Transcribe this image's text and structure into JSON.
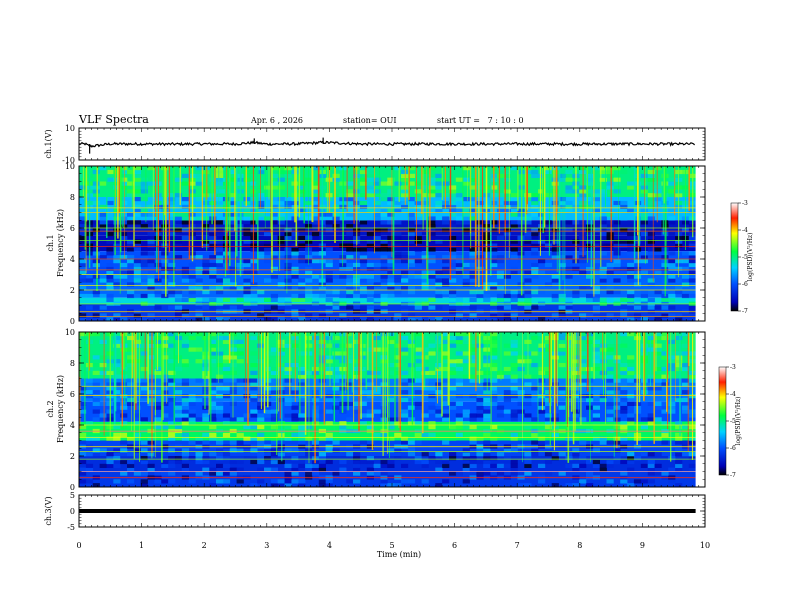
{
  "header": {
    "title": "VLF Spectra",
    "date": "Apr. 6  , 2026",
    "station": "station= OUI",
    "start_ut": "start UT =   7 : 10 : 0"
  },
  "chart_data": [
    {
      "type": "line",
      "panel": "ch1-waveform",
      "ylabel": "ch.1(V)",
      "ylim": [
        -10,
        10
      ],
      "yticks": [
        "10",
        "-10"
      ],
      "xlim": [
        0,
        10
      ],
      "x": [
        0,
        0.1,
        0.17,
        0.5,
        1.0,
        1.5,
        2.0,
        2.5,
        2.8,
        3.0,
        3.5,
        3.9,
        4.5,
        5.0,
        5.5,
        6.0,
        6.5,
        7.0,
        7.5,
        8.0,
        8.5,
        9.0,
        9.5,
        9.85
      ],
      "y": [
        0,
        0.3,
        -6,
        0.2,
        0.1,
        -0.3,
        0.2,
        0.1,
        3.5,
        -0.2,
        0.3,
        4.0,
        0.1,
        -0.2,
        0.2,
        0.1,
        -0.1,
        0.2,
        0.1,
        -0.2,
        0.1,
        0.2,
        -0.1,
        0.0
      ],
      "grid": false
    },
    {
      "type": "heatmap",
      "panel": "ch1-spectrogram",
      "ylabel": "ch.1\nFrequency (kHz)",
      "ylim": [
        0,
        10
      ],
      "yticks": [
        "0",
        "2",
        "4",
        "6",
        "8",
        "10"
      ],
      "xlim": [
        0,
        10
      ],
      "colorbar": {
        "label": "log(PSD)(V²/Hz)",
        "range": [
          -7,
          -3
        ],
        "ticks": [
          "-3",
          "-4",
          "-5",
          "-6",
          "-7"
        ]
      },
      "bands": [
        {
          "f": [
            8.0,
            10.0
          ],
          "level": -5.0
        },
        {
          "f": [
            6.5,
            8.0
          ],
          "level": -5.5
        },
        {
          "f": [
            5.5,
            6.5
          ],
          "level": -6.5
        },
        {
          "f": [
            4.5,
            5.5
          ],
          "level": -6.6
        },
        {
          "f": [
            3.0,
            4.5
          ],
          "level": -6.0
        },
        {
          "f": [
            1.5,
            3.0
          ],
          "level": -5.9
        },
        {
          "f": [
            1.1,
            1.5
          ],
          "level": -5.3
        },
        {
          "f": [
            0.0,
            1.1
          ],
          "level": -6.2
        }
      ],
      "lines_khz": [
        0.3,
        0.6,
        1.1,
        2.0,
        2.3,
        3.0,
        3.3,
        4.0,
        4.8,
        5.2,
        5.8,
        6.0,
        7.0,
        7.3
      ]
    },
    {
      "type": "heatmap",
      "panel": "ch2-spectrogram",
      "ylabel": "ch.2\nFrequency (kHz)",
      "ylim": [
        0,
        10
      ],
      "yticks": [
        "0",
        "2",
        "4",
        "6",
        "8",
        "10"
      ],
      "xlim": [
        0,
        10
      ],
      "colorbar": {
        "label": "log(PSD)(V²/Hz)",
        "range": [
          -7,
          -3
        ],
        "ticks": [
          "-3",
          "-4",
          "-5",
          "-6",
          "-7"
        ]
      },
      "bands": [
        {
          "f": [
            7.0,
            10.0
          ],
          "level": -5.0
        },
        {
          "f": [
            5.5,
            7.0
          ],
          "level": -5.8
        },
        {
          "f": [
            4.2,
            5.5
          ],
          "level": -6.0
        },
        {
          "f": [
            3.0,
            4.2
          ],
          "level": -4.9
        },
        {
          "f": [
            2.0,
            3.0
          ],
          "level": -6.1
        },
        {
          "f": [
            1.0,
            2.0
          ],
          "level": -6.3
        },
        {
          "f": [
            0.0,
            1.0
          ],
          "level": -6.2
        }
      ],
      "lines_khz": [
        0.6,
        1.0,
        1.8,
        2.3,
        2.6,
        3.2,
        3.6,
        4.0,
        5.9,
        6.5
      ]
    },
    {
      "type": "line",
      "panel": "ch3-waveform",
      "ylabel": "ch.3(V)",
      "ylim": [
        -5,
        5
      ],
      "yticks": [
        "5",
        "0",
        "-5"
      ],
      "xlim": [
        0,
        10
      ],
      "x": [
        0,
        9.85
      ],
      "y": [
        0,
        0
      ],
      "xlabel": "Time (min)",
      "xticks": [
        "0",
        "1",
        "2",
        "3",
        "4",
        "5",
        "6",
        "7",
        "8",
        "9",
        "10"
      ],
      "grid": false
    }
  ]
}
